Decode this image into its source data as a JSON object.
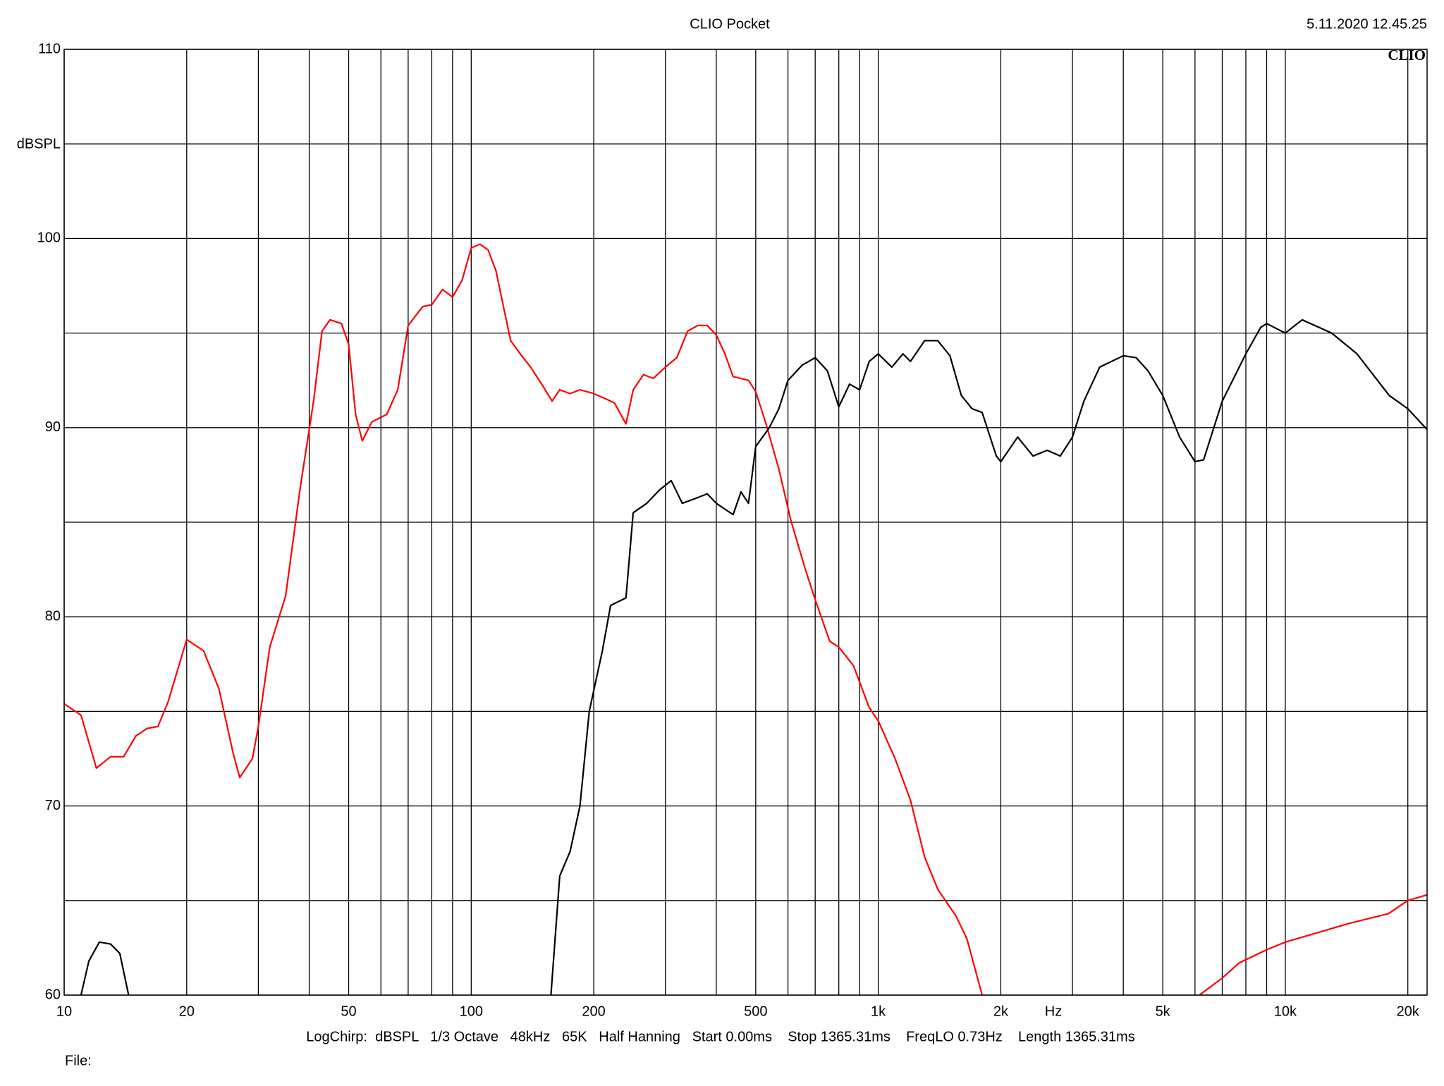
{
  "chart_data": {
    "type": "line",
    "title": "CLIO Pocket",
    "timestamp": "5.11.2020 12.45.25",
    "logo": "CLIO",
    "y_label": "dBSPL",
    "x_label": "Hz",
    "footer": "LogChirp:  dBSPL   1/3 Octave   48kHz   65K   Half Hanning   Start 0.00ms    Stop 1365.31ms    FreqLO 0.73Hz    Length 1365.31ms",
    "file_label": "File:",
    "x_scale": "log",
    "grid": true,
    "xlim": [
      10,
      22300
    ],
    "ylim": [
      60,
      110
    ],
    "yticks": [
      60,
      70,
      80,
      90,
      100,
      110
    ],
    "yminorticks": [
      65,
      75,
      85,
      95,
      105
    ],
    "xticks": [
      10,
      20,
      50,
      100,
      200,
      500,
      {
        "value": 1000,
        "label": "1k"
      },
      {
        "value": 2000,
        "label": "2k"
      },
      {
        "value": 5000,
        "label": "5k"
      },
      {
        "value": 10000,
        "label": "10k"
      },
      {
        "value": 20000,
        "label": "20k"
      }
    ],
    "xminorticks": [
      30,
      40,
      60,
      70,
      80,
      90,
      300,
      400,
      600,
      700,
      800,
      900,
      3000,
      4000,
      6000,
      7000,
      8000,
      9000
    ],
    "series": [
      {
        "name": "red",
        "color": "#ff0000",
        "x": [
          10,
          11,
          12,
          13,
          14,
          15,
          16,
          17,
          18,
          20,
          22,
          24,
          26,
          27,
          29,
          30,
          32,
          35,
          38,
          41,
          43,
          45,
          48,
          50,
          52,
          54,
          57,
          62,
          66,
          70,
          76,
          80,
          85,
          90,
          95,
          100,
          105,
          110,
          115,
          120,
          125,
          133,
          140,
          150,
          158,
          165,
          175,
          185,
          200,
          215,
          225,
          240,
          250,
          265,
          280,
          300,
          320,
          340,
          360,
          380,
          400,
          420,
          440,
          480,
          500,
          530,
          570,
          610,
          660,
          700,
          760,
          800,
          870,
          950,
          1000,
          1100,
          1200,
          1300,
          1400,
          1550,
          1650,
          1800,
          3000,
          6150,
          7000,
          7700,
          9000,
          10000,
          12000,
          14400,
          17900,
          20000,
          22300
        ],
        "values": [
          75.4,
          74.8,
          72.0,
          72.6,
          72.6,
          73.7,
          74.1,
          74.2,
          75.5,
          78.8,
          78.2,
          76.2,
          72.8,
          71.5,
          72.5,
          74.2,
          78.4,
          81.1,
          86.8,
          91.4,
          95.1,
          95.7,
          95.5,
          94.4,
          90.7,
          89.3,
          90.3,
          90.7,
          92.0,
          95.4,
          96.4,
          96.5,
          97.3,
          96.9,
          97.8,
          99.5,
          99.7,
          99.4,
          98.3,
          96.4,
          94.6,
          93.8,
          93.2,
          92.2,
          91.4,
          92.0,
          91.8,
          92.0,
          91.8,
          91.5,
          91.3,
          90.2,
          92.0,
          92.8,
          92.6,
          93.2,
          93.7,
          95.1,
          95.4,
          95.4,
          94.9,
          93.9,
          92.7,
          92.5,
          91.9,
          90.2,
          87.8,
          85.1,
          82.6,
          80.9,
          78.7,
          78.4,
          77.4,
          75.2,
          74.5,
          72.5,
          70.3,
          67.3,
          65.6,
          64.2,
          63.0,
          60.0,
          null,
          60.0,
          60.9,
          61.7,
          62.4,
          62.8,
          63.3,
          63.8,
          64.3,
          65.0,
          65.3
        ]
      },
      {
        "name": "black",
        "color": "#000000",
        "x": [
          11,
          11.5,
          12.2,
          13,
          13.7,
          14.4,
          60,
          157,
          165,
          175,
          185,
          195,
          210,
          220,
          240,
          250,
          270,
          290,
          310,
          330,
          360,
          380,
          400,
          440,
          460,
          480,
          500,
          540,
          570,
          600,
          650,
          700,
          750,
          800,
          850,
          900,
          950,
          1000,
          1080,
          1150,
          1200,
          1300,
          1400,
          1500,
          1600,
          1700,
          1800,
          1950,
          2000,
          2200,
          2400,
          2600,
          2800,
          3000,
          3200,
          3500,
          4000,
          4300,
          4600,
          5000,
          5500,
          6000,
          6300,
          7000,
          8000,
          8700,
          9000,
          10000,
          11000,
          13000,
          15000,
          18000,
          20000,
          22300
        ],
        "values": [
          60.0,
          61.8,
          62.8,
          62.7,
          62.2,
          60.0,
          null,
          60.0,
          66.3,
          67.6,
          70.0,
          75.0,
          78.2,
          80.6,
          81.0,
          85.5,
          86.0,
          86.7,
          87.2,
          86.0,
          86.3,
          86.5,
          86.0,
          85.4,
          86.6,
          86.0,
          89.0,
          90.0,
          91.0,
          92.5,
          93.3,
          93.7,
          93.0,
          91.1,
          92.3,
          92.0,
          93.5,
          93.9,
          93.2,
          93.9,
          93.5,
          94.6,
          94.6,
          93.8,
          91.7,
          91.0,
          90.8,
          88.5,
          88.2,
          89.5,
          88.5,
          88.8,
          88.5,
          89.5,
          91.4,
          93.2,
          93.8,
          93.7,
          93.0,
          91.7,
          89.5,
          88.2,
          88.3,
          91.4,
          93.9,
          95.3,
          95.5,
          95.0,
          95.7,
          95.0,
          93.9,
          91.7,
          91.0,
          89.9
        ]
      }
    ]
  }
}
